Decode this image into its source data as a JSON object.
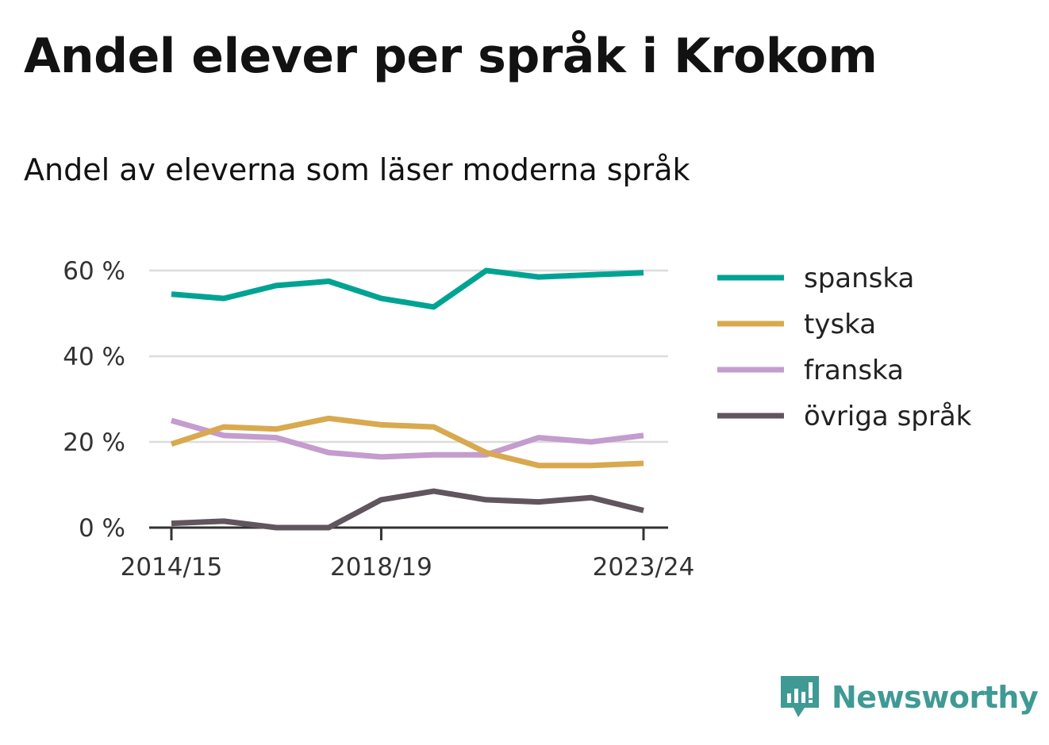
{
  "title": "Andel elever per språk i Krokom",
  "subtitle": "Andel av eleverna som läser moderna språk",
  "brand": {
    "name": "Newsworthy",
    "color": "#3f9a94",
    "icon": "newsworthy-logo-icon"
  },
  "chart_data": {
    "type": "line",
    "x": [
      "2014/15",
      "2015/16",
      "2016/17",
      "2017/18",
      "2018/19",
      "2019/20",
      "2020/21",
      "2021/22",
      "2022/23",
      "2023/24"
    ],
    "x_tick_labels": [
      "2014/15",
      "2018/19",
      "2023/24"
    ],
    "y_ticks": [
      0,
      20,
      40,
      60
    ],
    "y_tick_labels": [
      "0 %",
      "20 %",
      "40 %",
      "60 %"
    ],
    "ylim": [
      0,
      60
    ],
    "grid": true,
    "legend_position": "right",
    "series": [
      {
        "name": "spanska",
        "color": "#00a393",
        "values": [
          54.5,
          53.5,
          56.5,
          57.5,
          53.5,
          51.5,
          60.0,
          58.5,
          59.0,
          59.5
        ]
      },
      {
        "name": "tyska",
        "color": "#d9a94f",
        "values": [
          19.5,
          23.5,
          23.0,
          25.5,
          24.0,
          23.5,
          17.5,
          14.5,
          14.5,
          15.0
        ]
      },
      {
        "name": "franska",
        "color": "#c49cce",
        "values": [
          25.0,
          21.5,
          21.0,
          17.5,
          16.5,
          17.0,
          17.0,
          21.0,
          20.0,
          21.5
        ]
      },
      {
        "name": "övriga språk",
        "color": "#61555e",
        "values": [
          1.0,
          1.5,
          0.0,
          0.0,
          6.5,
          8.5,
          6.5,
          6.0,
          7.0,
          4.0
        ]
      }
    ]
  }
}
